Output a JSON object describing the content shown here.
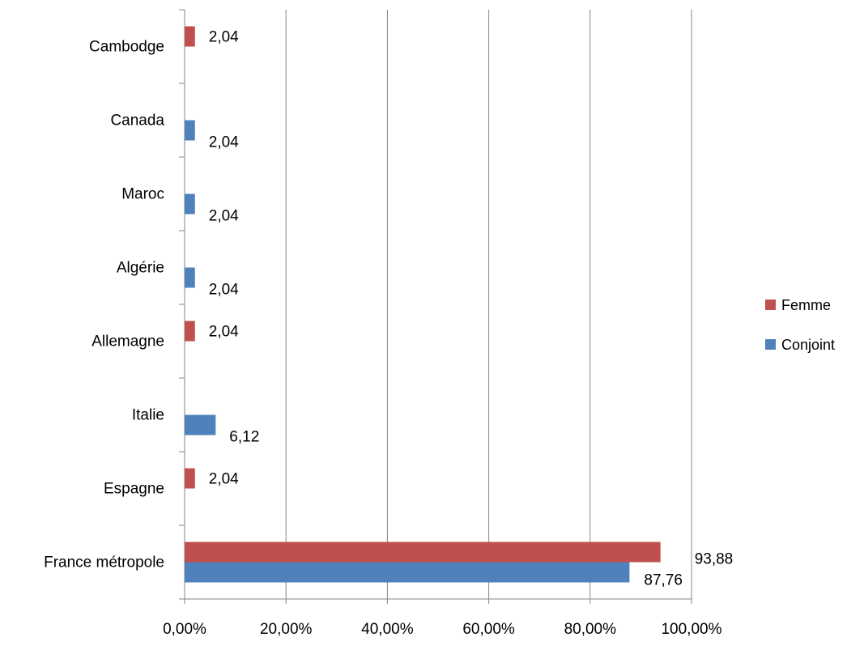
{
  "chart_data": {
    "type": "bar",
    "orientation": "horizontal",
    "categories": [
      "France métropole",
      "Espagne",
      "Italie",
      "Allemagne",
      "Algérie",
      "Maroc",
      "Canada",
      "Cambodge"
    ],
    "series": [
      {
        "name": "Femme",
        "color": "#C0504D",
        "values": [
          93.88,
          2.04,
          null,
          2.04,
          null,
          null,
          null,
          2.04
        ],
        "labels": [
          "93,88",
          "2,04",
          "",
          "2,04",
          "",
          "",
          "",
          "2,04"
        ]
      },
      {
        "name": "Conjoint",
        "color": "#4F81BD",
        "values": [
          87.76,
          null,
          6.12,
          null,
          2.04,
          2.04,
          2.04,
          null
        ],
        "labels": [
          "87,76",
          "",
          "6,12",
          "",
          "2,04",
          "2,04",
          "2,04",
          ""
        ]
      }
    ],
    "x_ticks": [
      "0,00%",
      "20,00%",
      "40,00%",
      "60,00%",
      "80,00%",
      "100,00%"
    ],
    "xlim": [
      0,
      100
    ],
    "grid": "vertical major gridlines",
    "legend_position": "right"
  }
}
